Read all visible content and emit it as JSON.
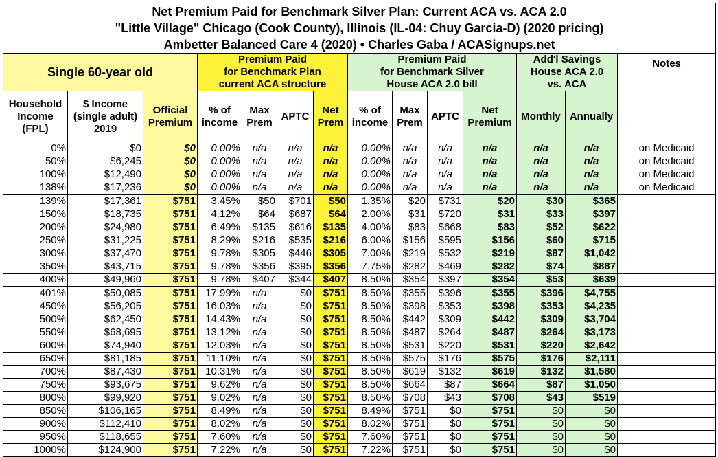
{
  "title": [
    "Net Premium Paid for Benchmark Silver Plan: Current ACA vs. ACA 2.0",
    "\"Little Village\" Chicago (Cook County), Illinois (IL-04: Chuy Garcia-D) (2020 pricing)",
    "Ambetter Balanced Care 4 (2020) • Charles Gaba / ACASignups.net"
  ],
  "groups": {
    "single": "Single 60-year old",
    "current": "Premium Paid\nfor Benchmark Plan\ncurrent ACA structure",
    "house": "Premium Paid\nfor Benchmark Silver\nHouse ACA 2.0 bill",
    "savings": "Add'l Savings\nHouse ACA 2.0\nvs. ACA",
    "notes": "Notes"
  },
  "columns": [
    "Household\nIncome\n(FPL)",
    "$ Income\n(single adult)\n2019",
    "Official\nPremium",
    "% of\nincome",
    "Max\nPrem",
    "APTC",
    "Net\nPrem",
    "% of\nincome",
    "Max\nPrem",
    "APTC",
    "Net\nPremium",
    "Monthly",
    "Annually"
  ],
  "rows": [
    [
      "0%",
      "$0",
      "$0",
      "0.00%",
      "n/a",
      "n/a",
      "n/a",
      "0.00%",
      "n/a",
      "n/a",
      "n/a",
      "n/a",
      "n/a",
      "on Medicaid"
    ],
    [
      "50%",
      "$6,245",
      "$0",
      "0.00%",
      "n/a",
      "n/a",
      "n/a",
      "0.00%",
      "n/a",
      "n/a",
      "n/a",
      "n/a",
      "n/a",
      "on Medicaid"
    ],
    [
      "100%",
      "$12,490",
      "$0",
      "0.00%",
      "n/a",
      "n/a",
      "n/a",
      "0.00%",
      "n/a",
      "n/a",
      "n/a",
      "n/a",
      "n/a",
      "on Medicaid"
    ],
    [
      "138%",
      "$17,236",
      "$0",
      "0.00%",
      "n/a",
      "n/a",
      "n/a",
      "0.00%",
      "n/a",
      "n/a",
      "n/a",
      "n/a",
      "n/a",
      "on Medicaid"
    ],
    [
      "139%",
      "$17,361",
      "$751",
      "3.45%",
      "$50",
      "$701",
      "$50",
      "1.35%",
      "$20",
      "$731",
      "$20",
      "$30",
      "$365"
    ],
    [
      "150%",
      "$18,735",
      "$751",
      "4.12%",
      "$64",
      "$687",
      "$64",
      "2.00%",
      "$31",
      "$720",
      "$31",
      "$33",
      "$397"
    ],
    [
      "200%",
      "$24,980",
      "$751",
      "6.49%",
      "$135",
      "$616",
      "$135",
      "4.00%",
      "$83",
      "$668",
      "$83",
      "$52",
      "$622"
    ],
    [
      "250%",
      "$31,225",
      "$751",
      "8.29%",
      "$216",
      "$535",
      "$216",
      "6.00%",
      "$156",
      "$595",
      "$156",
      "$60",
      "$715"
    ],
    [
      "300%",
      "$37,470",
      "$751",
      "9.78%",
      "$305",
      "$446",
      "$305",
      "7.00%",
      "$219",
      "$532",
      "$219",
      "$87",
      "$1,042"
    ],
    [
      "350%",
      "$43,715",
      "$751",
      "9.78%",
      "$356",
      "$395",
      "$356",
      "7.75%",
      "$282",
      "$469",
      "$282",
      "$74",
      "$887"
    ],
    [
      "400%",
      "$49,960",
      "$751",
      "9.78%",
      "$407",
      "$344",
      "$407",
      "8.50%",
      "$354",
      "$397",
      "$354",
      "$53",
      "$639"
    ],
    [
      "401%",
      "$50,085",
      "$751",
      "17.99%",
      "n/a",
      "$0",
      "$751",
      "8.50%",
      "$355",
      "$396",
      "$355",
      "$396",
      "$4,755"
    ],
    [
      "450%",
      "$56,205",
      "$751",
      "16.03%",
      "n/a",
      "$0",
      "$751",
      "8.50%",
      "$398",
      "$353",
      "$398",
      "$353",
      "$4,235"
    ],
    [
      "500%",
      "$62,450",
      "$751",
      "14.43%",
      "n/a",
      "$0",
      "$751",
      "8.50%",
      "$442",
      "$309",
      "$442",
      "$309",
      "$3,704"
    ],
    [
      "550%",
      "$68,695",
      "$751",
      "13.12%",
      "n/a",
      "$0",
      "$751",
      "8.50%",
      "$487",
      "$264",
      "$487",
      "$264",
      "$3,173"
    ],
    [
      "600%",
      "$74,940",
      "$751",
      "12.03%",
      "n/a",
      "$0",
      "$751",
      "8.50%",
      "$531",
      "$220",
      "$531",
      "$220",
      "$2,642"
    ],
    [
      "650%",
      "$81,185",
      "$751",
      "11.10%",
      "n/a",
      "$0",
      "$751",
      "8.50%",
      "$575",
      "$176",
      "$575",
      "$176",
      "$2,111"
    ],
    [
      "700%",
      "$87,430",
      "$751",
      "10.31%",
      "n/a",
      "$0",
      "$751",
      "8.50%",
      "$619",
      "$132",
      "$619",
      "$132",
      "$1,580"
    ],
    [
      "750%",
      "$93,675",
      "$751",
      "9.62%",
      "n/a",
      "$0",
      "$751",
      "8.50%",
      "$664",
      "$87",
      "$664",
      "$87",
      "$1,050"
    ],
    [
      "800%",
      "$99,920",
      "$751",
      "9.02%",
      "n/a",
      "$0",
      "$751",
      "8.50%",
      "$708",
      "$43",
      "$708",
      "$43",
      "$519"
    ],
    [
      "850%",
      "$106,165",
      "$751",
      "8.49%",
      "n/a",
      "$0",
      "$751",
      "8.49%",
      "$751",
      "$0",
      "$751",
      "$0",
      "$0"
    ],
    [
      "900%",
      "$112,410",
      "$751",
      "8.02%",
      "n/a",
      "$0",
      "$751",
      "8.02%",
      "$751",
      "$0",
      "$751",
      "$0",
      "$0"
    ],
    [
      "950%",
      "$118,655",
      "$751",
      "7.60%",
      "n/a",
      "$0",
      "$751",
      "7.60%",
      "$751",
      "$0",
      "$751",
      "$0",
      "$0"
    ],
    [
      "1000%",
      "$124,900",
      "$751",
      "7.22%",
      "n/a",
      "$0",
      "$751",
      "7.22%",
      "$751",
      "$0",
      "$751",
      "$0",
      "$0"
    ]
  ]
}
